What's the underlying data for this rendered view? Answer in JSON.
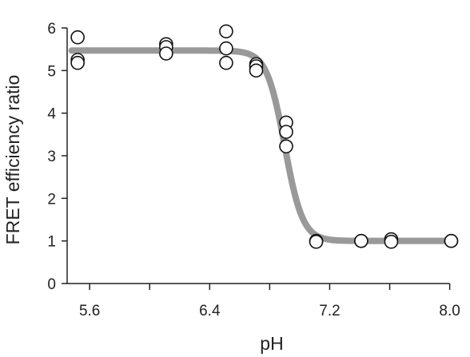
{
  "chart_data": {
    "type": "scatter",
    "xlabel": "pH",
    "ylabel": "FRET efficiency ratio",
    "xlim": [
      5.45,
      8.05
    ],
    "ylim": [
      0,
      6
    ],
    "x_ticks": [
      5.6,
      6.0,
      6.4,
      6.8,
      7.2,
      7.6,
      8.0
    ],
    "x_tick_labels": [
      "5.6",
      "",
      "6.4",
      "",
      "7.2",
      "",
      "8.0"
    ],
    "y_ticks": [
      0,
      1,
      2,
      3,
      4,
      5,
      6
    ],
    "y_tick_labels": [
      "0",
      "1",
      "2",
      "3",
      "4",
      "5",
      "6"
    ],
    "grid": false,
    "colors": {
      "fit": "#999999",
      "marker_fill": "#ffffff",
      "marker_edge": "#111111"
    },
    "points": [
      {
        "x": 5.52,
        "y": 5.78
      },
      {
        "x": 5.52,
        "y": 5.25
      },
      {
        "x": 5.52,
        "y": 5.18
      },
      {
        "x": 6.11,
        "y": 5.62
      },
      {
        "x": 6.11,
        "y": 5.55
      },
      {
        "x": 6.11,
        "y": 5.4
      },
      {
        "x": 6.51,
        "y": 5.92
      },
      {
        "x": 6.51,
        "y": 5.52
      },
      {
        "x": 6.51,
        "y": 5.18
      },
      {
        "x": 6.71,
        "y": 5.15
      },
      {
        "x": 6.71,
        "y": 5.1
      },
      {
        "x": 6.71,
        "y": 5.0
      },
      {
        "x": 6.91,
        "y": 3.78
      },
      {
        "x": 6.91,
        "y": 3.56
      },
      {
        "x": 6.91,
        "y": 3.22
      },
      {
        "x": 7.11,
        "y": 1.0
      },
      {
        "x": 7.11,
        "y": 0.98
      },
      {
        "x": 7.41,
        "y": 1.0
      },
      {
        "x": 7.41,
        "y": 1.0
      },
      {
        "x": 7.61,
        "y": 1.04
      },
      {
        "x": 7.61,
        "y": 0.98
      },
      {
        "x": 8.01,
        "y": 1.0
      },
      {
        "x": 8.01,
        "y": 1.0
      }
    ],
    "fit_curve": {
      "model": "sigmoid",
      "top": 5.47,
      "bottom": 1.0,
      "midpoint": 6.9,
      "slope": 0.06,
      "x_range": [
        5.48,
        8.01
      ]
    }
  }
}
